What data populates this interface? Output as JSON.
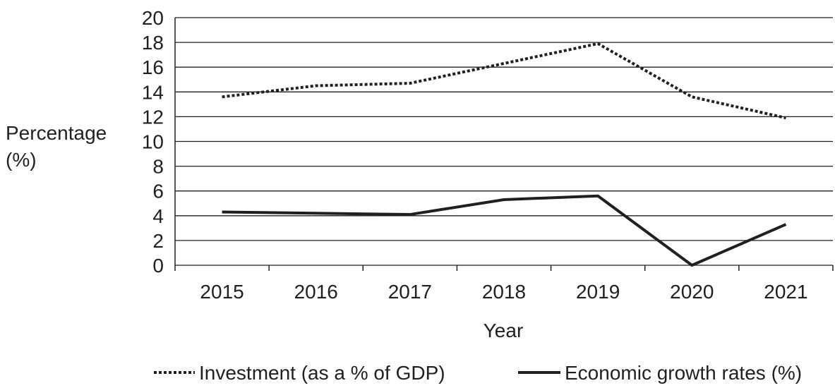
{
  "chart_data": {
    "type": "line",
    "ylabel": "Percentage (%)",
    "ylabel_lines": [
      "Percentage",
      "(%)"
    ],
    "xlabel": "Year",
    "x": [
      "2015",
      "2016",
      "2017",
      "2018",
      "2019",
      "2020",
      "2021"
    ],
    "ylim": [
      0,
      20
    ],
    "yticks": [
      "0",
      "2",
      "4",
      "6",
      "8",
      "10",
      "12",
      "14",
      "16",
      "18",
      "20"
    ],
    "grid": true,
    "legend_position": "bottom",
    "series": [
      {
        "name": "Investment (as a % of GDP)",
        "style": "dotted",
        "color": "#231f20",
        "values": [
          13.6,
          14.5,
          14.7,
          16.3,
          17.9,
          13.6,
          11.9
        ]
      },
      {
        "name": "Economic growth rates (%)",
        "style": "solid",
        "color": "#231f20",
        "values": [
          4.3,
          4.2,
          4.1,
          5.3,
          5.6,
          0.0,
          3.3
        ]
      }
    ]
  }
}
